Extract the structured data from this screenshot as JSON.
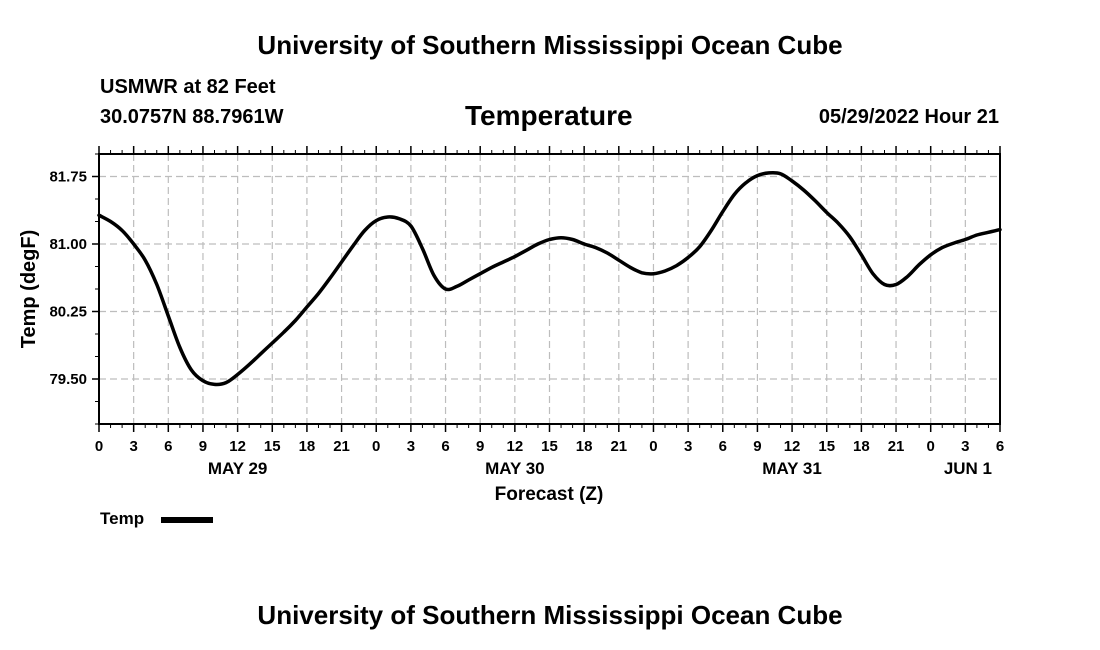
{
  "header": {
    "title": "University of Southern Mississippi Ocean Cube",
    "station": "USMWR at 82 Feet",
    "coordinates": "30.0757N  88.7961W",
    "variable": "Temperature",
    "datetime": "05/29/2022 Hour 21"
  },
  "footer": {
    "title": "University of Southern Mississippi Ocean Cube"
  },
  "legend": {
    "label": "Temp"
  },
  "chart_data": {
    "type": "line",
    "xlabel": "Forecast (Z)",
    "ylabel": "Temp (degF)",
    "ylim": [
      79.0,
      82.0
    ],
    "xlim": [
      0,
      78
    ],
    "x_unit": "hours from May 29 00Z",
    "x_tick_labels": [
      "0",
      "3",
      "6",
      "9",
      "12",
      "15",
      "18",
      "21",
      "0",
      "3",
      "6",
      "9",
      "12",
      "15",
      "18",
      "21",
      "0",
      "3",
      "6",
      "9",
      "12",
      "15",
      "18",
      "21",
      "0",
      "3",
      "6"
    ],
    "y_ticks": [
      79.5,
      80.25,
      81.0,
      81.75
    ],
    "y_tick_labels": [
      "79.50",
      "80.25",
      "81.00",
      "81.75"
    ],
    "date_labels": [
      {
        "label": "MAY 29",
        "hour": 12
      },
      {
        "label": "MAY 30",
        "hour": 36
      },
      {
        "label": "MAY 31",
        "hour": 60
      },
      {
        "label": "JUN 1",
        "hour": 78
      }
    ],
    "grid": true,
    "series": [
      {
        "name": "Temp",
        "color": "#000000",
        "x": [
          0,
          1,
          2,
          3,
          4,
          5,
          6,
          7,
          8,
          9,
          10,
          11,
          12,
          13,
          14,
          15,
          16,
          17,
          18,
          19,
          20,
          21,
          22,
          23,
          24,
          25,
          26,
          27,
          28,
          29,
          30,
          31,
          32,
          33,
          34,
          35,
          36,
          37,
          38,
          39,
          40,
          41,
          42,
          43,
          44,
          45,
          46,
          47,
          48,
          49,
          50,
          51,
          52,
          53,
          54,
          55,
          56,
          57,
          58,
          59,
          60,
          61,
          62,
          63,
          64,
          65,
          66,
          67,
          68,
          69,
          70,
          71,
          72,
          73,
          74,
          75,
          76,
          77,
          78
        ],
        "values": [
          81.32,
          81.25,
          81.15,
          81.0,
          80.82,
          80.55,
          80.2,
          79.85,
          79.6,
          79.48,
          79.44,
          79.46,
          79.55,
          79.66,
          79.78,
          79.9,
          80.02,
          80.15,
          80.3,
          80.45,
          80.62,
          80.8,
          80.98,
          81.15,
          81.26,
          81.3,
          81.28,
          81.2,
          80.95,
          80.65,
          80.5,
          80.53,
          80.6,
          80.67,
          80.74,
          80.8,
          80.86,
          80.93,
          81.0,
          81.05,
          81.07,
          81.05,
          81.0,
          80.96,
          80.9,
          80.82,
          80.74,
          80.68,
          80.67,
          80.7,
          80.76,
          80.85,
          80.97,
          81.15,
          81.36,
          81.55,
          81.68,
          81.76,
          81.79,
          81.78,
          81.7,
          81.6,
          81.48,
          81.35,
          81.23,
          81.08,
          80.88,
          80.67,
          80.55,
          80.55,
          80.64,
          80.77,
          80.88,
          80.96,
          81.01,
          81.05,
          81.1,
          81.13,
          81.16
        ]
      }
    ]
  }
}
